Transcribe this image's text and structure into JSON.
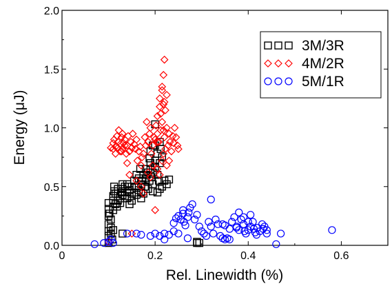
{
  "chart_data": {
    "type": "scatter",
    "xlabel": "Rel. Linewidth (%)",
    "ylabel": "Energy (μJ)",
    "xlim": [
      0,
      0.7
    ],
    "ylim": [
      0,
      2.0
    ],
    "x_ticks": [
      0,
      0.2,
      0.4,
      0.6
    ],
    "x_tick_labels": [
      "0",
      "0.2",
      "0.4",
      "0.6"
    ],
    "y_ticks": [
      0.0,
      0.5,
      1.0,
      1.5,
      2.0
    ],
    "y_tick_labels": [
      "0.0",
      "0.5",
      "1.0",
      "1.5",
      "2.0"
    ],
    "grid": false,
    "legend_position": "top-right",
    "series": [
      {
        "name": "3M/3R",
        "marker": "square",
        "color": "#000000",
        "points": [
          [
            0.1,
            0.02
          ],
          [
            0.1,
            0.08
          ],
          [
            0.1,
            0.12
          ],
          [
            0.1,
            0.18
          ],
          [
            0.1,
            0.25
          ],
          [
            0.1,
            0.31
          ],
          [
            0.1,
            0.36
          ],
          [
            0.105,
            0.1
          ],
          [
            0.105,
            0.15
          ],
          [
            0.105,
            0.22
          ],
          [
            0.11,
            0.3
          ],
          [
            0.11,
            0.33
          ],
          [
            0.11,
            0.38
          ],
          [
            0.11,
            0.42
          ],
          [
            0.112,
            0.5
          ],
          [
            0.115,
            0.35
          ],
          [
            0.12,
            0.38
          ],
          [
            0.12,
            0.44
          ],
          [
            0.125,
            0.4
          ],
          [
            0.128,
            0.45
          ],
          [
            0.13,
            0.48
          ],
          [
            0.13,
            0.52
          ],
          [
            0.135,
            0.42
          ],
          [
            0.135,
            0.5
          ],
          [
            0.14,
            0.45
          ],
          [
            0.14,
            0.52
          ],
          [
            0.145,
            0.47
          ],
          [
            0.15,
            0.42
          ],
          [
            0.15,
            0.5
          ],
          [
            0.155,
            0.45
          ],
          [
            0.16,
            0.43
          ],
          [
            0.16,
            0.5
          ],
          [
            0.165,
            0.47
          ],
          [
            0.17,
            0.4
          ],
          [
            0.17,
            0.52
          ],
          [
            0.172,
            0.55
          ],
          [
            0.175,
            0.44
          ],
          [
            0.178,
            0.5
          ],
          [
            0.18,
            0.57
          ],
          [
            0.182,
            0.6
          ],
          [
            0.185,
            0.48
          ],
          [
            0.185,
            0.62
          ],
          [
            0.188,
            0.55
          ],
          [
            0.19,
            0.65
          ],
          [
            0.19,
            0.7
          ],
          [
            0.192,
            0.58
          ],
          [
            0.195,
            0.52
          ],
          [
            0.195,
            0.62
          ],
          [
            0.2,
            0.67
          ],
          [
            0.2,
            0.72
          ],
          [
            0.205,
            0.6
          ],
          [
            0.205,
            0.78
          ],
          [
            0.208,
            0.55
          ],
          [
            0.21,
            0.7
          ],
          [
            0.212,
            0.82
          ],
          [
            0.2,
            0.85
          ],
          [
            0.21,
            0.88
          ],
          [
            0.215,
            0.75
          ],
          [
            0.195,
            0.85
          ],
          [
            0.2,
            1.03
          ],
          [
            0.19,
            0.8
          ],
          [
            0.188,
            0.74
          ],
          [
            0.18,
            0.65
          ],
          [
            0.175,
            0.6
          ],
          [
            0.165,
            0.57
          ],
          [
            0.16,
            0.6
          ],
          [
            0.155,
            0.55
          ],
          [
            0.15,
            0.38
          ],
          [
            0.145,
            0.35
          ],
          [
            0.14,
            0.4
          ],
          [
            0.13,
            0.43
          ],
          [
            0.125,
            0.36
          ],
          [
            0.12,
            0.48
          ],
          [
            0.115,
            0.44
          ],
          [
            0.112,
            0.46
          ],
          [
            0.13,
            0.1
          ],
          [
            0.215,
            0.5
          ],
          [
            0.22,
            0.55
          ],
          [
            0.225,
            0.52
          ],
          [
            0.23,
            0.56
          ],
          [
            0.205,
            0.45
          ],
          [
            0.21,
            0.48
          ],
          [
            0.195,
            0.46
          ],
          [
            0.17,
            0.45
          ],
          [
            0.11,
            0.13
          ],
          [
            0.108,
            0.05
          ],
          [
            0.102,
            0.27
          ],
          [
            0.118,
            0.33
          ],
          [
            0.142,
            0.5
          ],
          [
            0.168,
            0.65
          ],
          [
            0.29,
            0.02
          ],
          [
            0.29,
            0.03
          ],
          [
            0.295,
            0.02
          ]
        ]
      },
      {
        "name": "4M/2R",
        "marker": "diamond",
        "color": "#ff0000",
        "points": [
          [
            0.1,
            0.03
          ],
          [
            0.105,
            0.83
          ],
          [
            0.11,
            0.82
          ],
          [
            0.11,
            0.87
          ],
          [
            0.112,
            0.9
          ],
          [
            0.115,
            0.78
          ],
          [
            0.115,
            0.84
          ],
          [
            0.118,
            0.93
          ],
          [
            0.12,
            0.83
          ],
          [
            0.12,
            0.88
          ],
          [
            0.122,
            0.98
          ],
          [
            0.125,
            0.8
          ],
          [
            0.125,
            0.86
          ],
          [
            0.128,
            0.92
          ],
          [
            0.13,
            0.82
          ],
          [
            0.13,
            0.95
          ],
          [
            0.132,
            0.87
          ],
          [
            0.135,
            0.9
          ],
          [
            0.138,
            0.78
          ],
          [
            0.14,
            0.85
          ],
          [
            0.142,
            0.93
          ],
          [
            0.145,
            0.8
          ],
          [
            0.148,
            0.88
          ],
          [
            0.15,
            0.83
          ],
          [
            0.152,
            0.95
          ],
          [
            0.155,
            0.86
          ],
          [
            0.158,
            0.82
          ],
          [
            0.16,
            0.9
          ],
          [
            0.162,
            0.72
          ],
          [
            0.165,
            0.8
          ],
          [
            0.168,
            0.84
          ],
          [
            0.17,
            0.68
          ],
          [
            0.172,
            0.75
          ],
          [
            0.175,
            0.78
          ],
          [
            0.178,
            0.92
          ],
          [
            0.18,
            0.85
          ],
          [
            0.182,
            1.05
          ],
          [
            0.185,
            0.88
          ],
          [
            0.188,
            0.95
          ],
          [
            0.19,
            1.0
          ],
          [
            0.192,
            0.78
          ],
          [
            0.195,
            0.85
          ],
          [
            0.198,
            0.92
          ],
          [
            0.2,
            0.9
          ],
          [
            0.202,
            1.02
          ],
          [
            0.205,
            0.95
          ],
          [
            0.205,
            1.1
          ],
          [
            0.208,
            0.88
          ],
          [
            0.21,
            1.18
          ],
          [
            0.21,
            1.25
          ],
          [
            0.212,
            0.98
          ],
          [
            0.215,
            1.35
          ],
          [
            0.215,
            1.05
          ],
          [
            0.218,
            1.2
          ],
          [
            0.218,
            1.45
          ],
          [
            0.22,
            1.58
          ],
          [
            0.22,
            0.92
          ],
          [
            0.222,
            1.15
          ],
          [
            0.222,
            0.82
          ],
          [
            0.225,
            1.28
          ],
          [
            0.225,
            1.0
          ],
          [
            0.228,
            0.85
          ],
          [
            0.23,
            0.95
          ],
          [
            0.232,
            0.88
          ],
          [
            0.235,
            0.8
          ],
          [
            0.238,
            0.93
          ],
          [
            0.24,
            0.87
          ],
          [
            0.242,
            1.0
          ],
          [
            0.245,
            0.92
          ],
          [
            0.248,
            0.85
          ],
          [
            0.25,
            0.82
          ],
          [
            0.205,
            0.65
          ],
          [
            0.21,
            0.6
          ],
          [
            0.215,
            0.72
          ],
          [
            0.218,
            0.78
          ],
          [
            0.225,
            0.68
          ],
          [
            0.23,
            0.72
          ],
          [
            0.2,
            0.3
          ],
          [
            0.15,
            0.1
          ],
          [
            0.16,
            0.55
          ],
          [
            0.145,
            0.6
          ],
          [
            0.17,
            0.5
          ],
          [
            0.175,
            0.44
          ],
          [
            0.185,
            0.62
          ],
          [
            0.19,
            0.58
          ],
          [
            0.195,
            0.68
          ],
          [
            0.14,
            0.7
          ],
          [
            0.128,
            0.8
          ],
          [
            0.135,
            0.85
          ],
          [
            0.215,
            1.32
          ],
          [
            0.22,
            1.22
          ],
          [
            0.212,
            1.12
          ],
          [
            0.218,
            0.98
          ],
          [
            0.205,
            0.88
          ]
        ]
      },
      {
        "name": "5M/1R",
        "marker": "circle",
        "color": "#0000ff",
        "points": [
          [
            0.07,
            0.01
          ],
          [
            0.09,
            0.02
          ],
          [
            0.1,
            0.03
          ],
          [
            0.105,
            0.05
          ],
          [
            0.11,
            0.02
          ],
          [
            0.14,
            0.1
          ],
          [
            0.16,
            0.1
          ],
          [
            0.17,
            0.09
          ],
          [
            0.19,
            0.08
          ],
          [
            0.2,
            0.1
          ],
          [
            0.21,
            0.08
          ],
          [
            0.22,
            0.1
          ],
          [
            0.23,
            0.09
          ],
          [
            0.24,
            0.12
          ],
          [
            0.22,
            0.05
          ],
          [
            0.25,
            0.1
          ],
          [
            0.24,
            0.19
          ],
          [
            0.245,
            0.23
          ],
          [
            0.25,
            0.25
          ],
          [
            0.255,
            0.22
          ],
          [
            0.26,
            0.27
          ],
          [
            0.26,
            0.3
          ],
          [
            0.262,
            0.2
          ],
          [
            0.265,
            0.17
          ],
          [
            0.27,
            0.24
          ],
          [
            0.272,
            0.28
          ],
          [
            0.275,
            0.32
          ],
          [
            0.28,
            0.35
          ],
          [
            0.285,
            0.22
          ],
          [
            0.29,
            0.26
          ],
          [
            0.3,
            0.12
          ],
          [
            0.305,
            0.1
          ],
          [
            0.31,
            0.08
          ],
          [
            0.315,
            0.2
          ],
          [
            0.32,
            0.16
          ],
          [
            0.32,
            0.39
          ],
          [
            0.325,
            0.1
          ],
          [
            0.33,
            0.22
          ],
          [
            0.335,
            0.18
          ],
          [
            0.34,
            0.08
          ],
          [
            0.345,
            0.06
          ],
          [
            0.35,
            0.05
          ],
          [
            0.355,
            0.06
          ],
          [
            0.36,
            0.14
          ],
          [
            0.365,
            0.2
          ],
          [
            0.37,
            0.24
          ],
          [
            0.375,
            0.16
          ],
          [
            0.38,
            0.28
          ],
          [
            0.385,
            0.22
          ],
          [
            0.39,
            0.18
          ],
          [
            0.392,
            0.12
          ],
          [
            0.395,
            0.1
          ],
          [
            0.4,
            0.13
          ],
          [
            0.405,
            0.16
          ],
          [
            0.41,
            0.2
          ],
          [
            0.412,
            0.14
          ],
          [
            0.415,
            0.11
          ],
          [
            0.418,
            0.09
          ],
          [
            0.42,
            0.15
          ],
          [
            0.425,
            0.12
          ],
          [
            0.43,
            0.18
          ],
          [
            0.432,
            0.14
          ],
          [
            0.435,
            0.16
          ],
          [
            0.44,
            0.13
          ],
          [
            0.44,
            0.1
          ],
          [
            0.375,
            0.15
          ],
          [
            0.38,
            0.13
          ],
          [
            0.36,
            0.05
          ],
          [
            0.345,
            0.18
          ],
          [
            0.295,
            0.16
          ],
          [
            0.46,
            0.01
          ],
          [
            0.47,
            0.1
          ],
          [
            0.58,
            0.13
          ],
          [
            0.27,
            0.06
          ],
          [
            0.35,
            0.17
          ],
          [
            0.4,
            0.2
          ],
          [
            0.405,
            0.26
          ],
          [
            0.39,
            0.24
          ]
        ]
      }
    ]
  }
}
